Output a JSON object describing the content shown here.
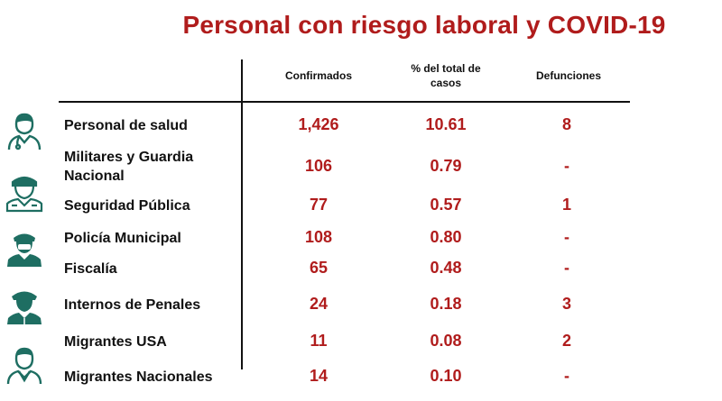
{
  "title": "Personal con riesgo laboral y COVID-19",
  "accent_color": "#b01c1c",
  "icon_color": "#1e6e62",
  "columns": {
    "confirmados": "Confirmados",
    "porcentaje": "% del total de casos",
    "defunciones": "Defunciones"
  },
  "rows": [
    {
      "label": "Personal de salud",
      "confirmados": "1,426",
      "porcentaje": "10.61",
      "defunciones": "8",
      "icon": "doctor-icon"
    },
    {
      "label": "Militares y Guardia Nacional",
      "confirmados": "106",
      "porcentaje": "0.79",
      "defunciones": "-",
      "icon": ""
    },
    {
      "label": "Seguridad Pública",
      "confirmados": "77",
      "porcentaje": "0.57",
      "defunciones": "1",
      "icon": "soldier-icon"
    },
    {
      "label": "Policía Municipal",
      "confirmados": "108",
      "porcentaje": "0.80",
      "defunciones": "-",
      "icon": "police-icon"
    },
    {
      "label": "Fiscalía",
      "confirmados": "65",
      "porcentaje": "0.48",
      "defunciones": "-",
      "icon": ""
    },
    {
      "label": "Internos de Penales",
      "confirmados": "24",
      "porcentaje": "0.18",
      "defunciones": "3",
      "icon": "officer-icon"
    },
    {
      "label": "Migrantes USA",
      "confirmados": "11",
      "porcentaje": "0.08",
      "defunciones": "2",
      "icon": ""
    },
    {
      "label": "Migrantes Nacionales",
      "confirmados": "14",
      "porcentaje": "0.10",
      "defunciones": "-",
      "icon": "scout-icon"
    }
  ]
}
